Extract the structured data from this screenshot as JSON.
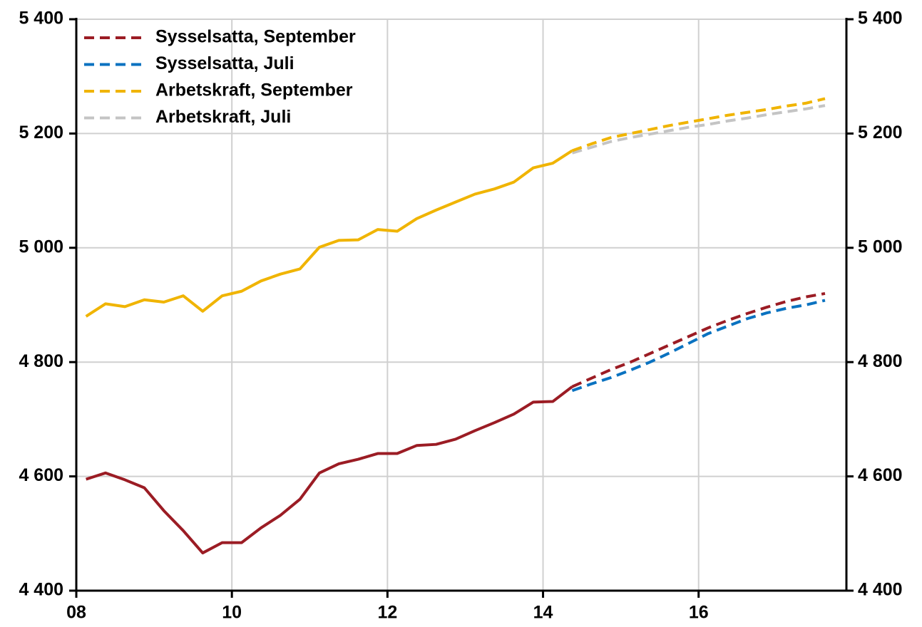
{
  "chart_data": {
    "type": "line",
    "x": [
      2008.125,
      2008.375,
      2008.625,
      2008.875,
      2009.125,
      2009.375,
      2009.625,
      2009.875,
      2010.125,
      2010.375,
      2010.625,
      2010.875,
      2011.125,
      2011.375,
      2011.625,
      2011.875,
      2012.125,
      2012.375,
      2012.625,
      2012.875,
      2013.125,
      2013.375,
      2013.625,
      2013.875,
      2014.125,
      2014.375,
      2014.625,
      2014.875,
      2015.125,
      2015.375,
      2015.625,
      2015.875,
      2016.125,
      2016.375,
      2016.625,
      2016.875,
      2017.125,
      2017.375,
      2017.625
    ],
    "history": [
      {
        "color": "#9b1c24",
        "values": [
          4595,
          4606,
          4594,
          4580,
          4540,
          4505,
          4466,
          4484,
          4484,
          4510,
          4532,
          4560,
          4606,
          4622,
          4630,
          4640,
          4640,
          4654,
          4656,
          4665,
          4680,
          4694,
          4709,
          4730,
          4731,
          4757,
          null,
          null,
          null,
          null,
          null,
          null,
          null,
          null,
          null,
          null,
          null,
          null,
          null
        ]
      },
      {
        "color": "#f0b400",
        "values": [
          4880,
          4902,
          4897,
          4909,
          4905,
          4916,
          4889,
          4916,
          4924,
          4942,
          4954,
          4963,
          5001,
          5013,
          5014,
          5032,
          5029,
          5051,
          5066,
          5080,
          5094,
          5103,
          5115,
          5140,
          5148,
          5170,
          null,
          null,
          null,
          null,
          null,
          null,
          null,
          null,
          null,
          null,
          null,
          null,
          null
        ]
      }
    ],
    "series": [
      {
        "name": "Sysselsatta, September",
        "color": "#9b1c24",
        "values": [
          null,
          null,
          null,
          null,
          null,
          null,
          null,
          null,
          null,
          null,
          null,
          null,
          null,
          null,
          null,
          null,
          null,
          null,
          null,
          null,
          null,
          null,
          null,
          null,
          null,
          4757,
          4772,
          4787,
          4800,
          4815,
          4830,
          4845,
          4860,
          4873,
          4885,
          4896,
          4906,
          4914,
          4920
        ]
      },
      {
        "name": "Sysselsatta, Juli",
        "color": "#0a72c0",
        "values": [
          null,
          null,
          null,
          null,
          null,
          null,
          null,
          null,
          null,
          null,
          null,
          null,
          null,
          null,
          null,
          null,
          null,
          null,
          null,
          null,
          null,
          null,
          null,
          null,
          null,
          4750,
          4762,
          4773,
          4786,
          4800,
          4816,
          4833,
          4850,
          4863,
          4876,
          4886,
          4894,
          4900,
          4908
        ]
      },
      {
        "name": "Arbetskraft, September",
        "color": "#f0b400",
        "values": [
          null,
          null,
          null,
          null,
          null,
          null,
          null,
          null,
          null,
          null,
          null,
          null,
          null,
          null,
          null,
          null,
          null,
          null,
          null,
          null,
          null,
          null,
          null,
          null,
          null,
          5170,
          5182,
          5193,
          5200,
          5207,
          5214,
          5220,
          5226,
          5232,
          5237,
          5242,
          5248,
          5253,
          5261
        ]
      },
      {
        "name": "Arbetskraft, Juli",
        "color": "#c4c4c4",
        "values": [
          null,
          null,
          null,
          null,
          null,
          null,
          null,
          null,
          null,
          null,
          null,
          null,
          null,
          null,
          null,
          null,
          null,
          null,
          null,
          null,
          null,
          null,
          null,
          null,
          null,
          5166,
          5176,
          5186,
          5193,
          5199,
          5205,
          5211,
          5216,
          5222,
          5227,
          5233,
          5238,
          5243,
          5249
        ]
      }
    ],
    "xlim": [
      2008,
      2017.9
    ],
    "xticks": [
      {
        "value": 2008,
        "label": "08"
      },
      {
        "value": 2010,
        "label": "10"
      },
      {
        "value": 2012,
        "label": "12"
      },
      {
        "value": 2014,
        "label": "14"
      },
      {
        "value": 2016,
        "label": "16"
      }
    ],
    "ylim": [
      4400,
      5400
    ],
    "yticks": [
      {
        "value": 4400,
        "label": "4 400"
      },
      {
        "value": 4600,
        "label": "4 600"
      },
      {
        "value": 4800,
        "label": "4 800"
      },
      {
        "value": 5000,
        "label": "5 000"
      },
      {
        "value": 5200,
        "label": "5 200"
      },
      {
        "value": 5400,
        "label": "5 400"
      }
    ],
    "y2lim": [
      4400,
      5400
    ],
    "y2ticks": [
      {
        "value": 4400,
        "label": "4 400"
      },
      {
        "value": 4600,
        "label": "4 600"
      },
      {
        "value": 4800,
        "label": "4 800"
      },
      {
        "value": 5000,
        "label": "5 000"
      },
      {
        "value": 5200,
        "label": "5 200"
      },
      {
        "value": 5400,
        "label": "5 400"
      }
    ],
    "grid": true,
    "legend": "upper-left"
  }
}
